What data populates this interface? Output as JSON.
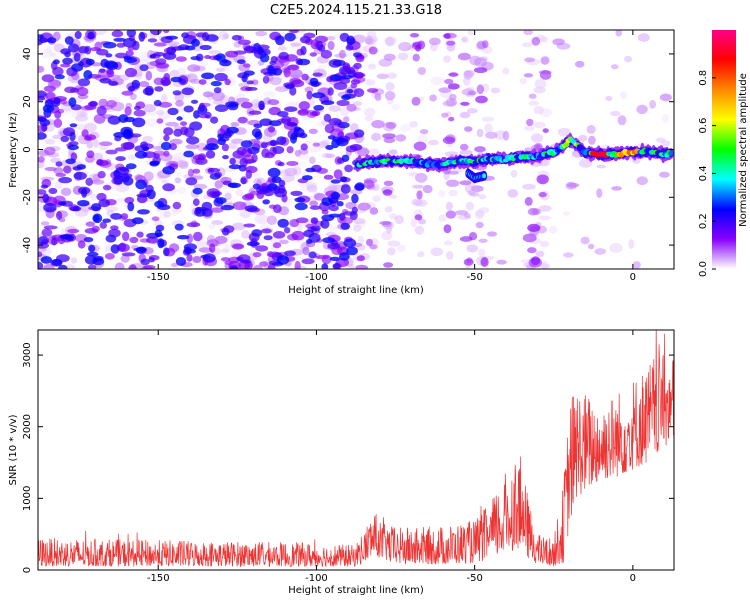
{
  "figure": {
    "title": "C2E5.2024.115.21.33.G18"
  },
  "chart_data": [
    {
      "type": "heatmap",
      "xlabel": "Height of straight line (km)",
      "ylabel": "Frequency (Hz)",
      "xlim": [
        -188,
        13
      ],
      "ylim": [
        -50,
        50
      ],
      "xticks": [
        -150,
        -100,
        -50,
        0
      ],
      "yticks": [
        -40,
        -20,
        0,
        20,
        40
      ],
      "colorbar": {
        "label": "Normalized spectral amplitude",
        "range": [
          0,
          1
        ],
        "ticks": [
          0.0,
          0.2,
          0.4,
          0.6,
          0.8
        ],
        "tick_labels": [
          "0.0",
          "0.2",
          "0.4",
          "0.6",
          "0.8"
        ],
        "colormap": "gist_rainbow_r",
        "stops": [
          "#ffffff",
          "#8800ff",
          "#0000ff",
          "#00ffff",
          "#00ff00",
          "#ffff00",
          "#ff8800",
          "#ff0000",
          "#ff0088"
        ]
      },
      "signal_ridge": {
        "x": [
          -87,
          -80,
          -75,
          -70,
          -65,
          -60,
          -55,
          -50,
          -45,
          -40,
          -35,
          -30,
          -25,
          -22,
          -20,
          -18,
          -15,
          -12,
          -10,
          -5,
          0,
          5,
          10,
          12
        ],
        "y": [
          -6,
          -5,
          -5,
          -5,
          -6,
          -6,
          -5,
          -5,
          -4,
          -4,
          -3,
          -3,
          -1,
          1,
          4,
          2,
          -1,
          -2,
          -2,
          -2,
          -1,
          -1,
          -2,
          -2
        ]
      },
      "branch": {
        "x": [
          -52,
          -50,
          -47
        ],
        "y": [
          -10,
          -12,
          -11
        ]
      },
      "noise_region": {
        "x": [
          -188,
          -88
        ],
        "level": 0.25
      },
      "stripes_x": [
        -86,
        -82,
        -77,
        -68,
        -58,
        -52,
        -47,
        -32,
        -29
      ]
    },
    {
      "type": "line",
      "xlabel": "Height of straight line (km)",
      "ylabel": "SNR (10 * v/v)",
      "xlim": [
        -188,
        13
      ],
      "ylim": [
        0,
        3350
      ],
      "xticks": [
        -150,
        -100,
        -50,
        0
      ],
      "yticks": [
        0,
        1000,
        2000,
        3000
      ],
      "color": "#ee3333",
      "envelope": {
        "x": [
          -188,
          -150,
          -120,
          -100,
          -88,
          -85,
          -82,
          -79,
          -75,
          -70,
          -60,
          -50,
          -45,
          -40,
          -36,
          -33,
          -30,
          -25,
          -22,
          -20,
          -18,
          -15,
          -12,
          -10,
          -5,
          0,
          5,
          10,
          12
        ],
        "low": [
          50,
          50,
          50,
          50,
          50,
          100,
          200,
          150,
          80,
          80,
          80,
          100,
          150,
          250,
          300,
          150,
          80,
          50,
          100,
          600,
          1000,
          1100,
          1200,
          1250,
          1300,
          1400,
          1500,
          1700,
          1800
        ],
        "high": [
          450,
          420,
          400,
          380,
          350,
          550,
          850,
          650,
          600,
          600,
          620,
          700,
          950,
          1400,
          1700,
          1000,
          500,
          450,
          1200,
          2400,
          2600,
          2500,
          2400,
          2400,
          2500,
          2700,
          2900,
          3300,
          3000
        ]
      }
    }
  ]
}
